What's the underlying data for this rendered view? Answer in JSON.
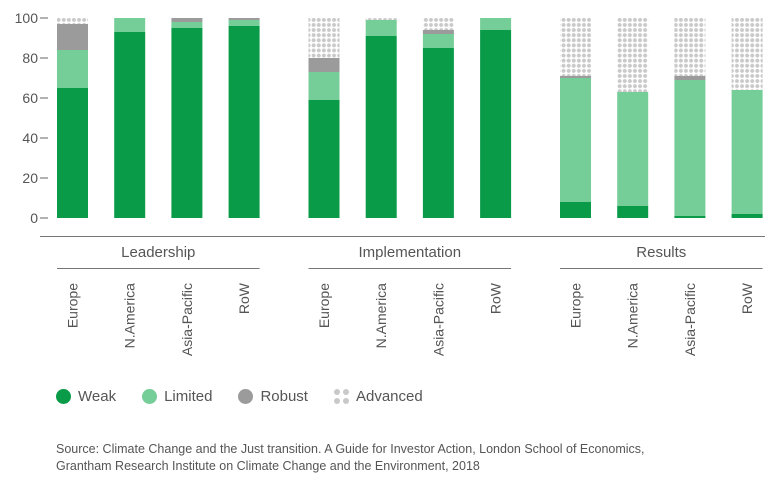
{
  "chart_data": {
    "type": "bar",
    "stacked": true,
    "ylim": [
      0,
      100
    ],
    "yticks": [
      0,
      20,
      40,
      60,
      80,
      100
    ],
    "groups": [
      {
        "label": "Leadership",
        "categories": [
          "Europe",
          "N.America",
          "Asia-Pacific",
          "RoW"
        ]
      },
      {
        "label": "Implementation",
        "categories": [
          "Europe",
          "N.America",
          "Asia-Pacific",
          "RoW"
        ]
      },
      {
        "label": "Results",
        "categories": [
          "Europe",
          "N.America",
          "Asia-Pacific",
          "RoW"
        ]
      }
    ],
    "series": [
      {
        "name": "Weak",
        "color": "#0a9b48",
        "values": [
          [
            65,
            93,
            95,
            96
          ],
          [
            59,
            91,
            85,
            94
          ],
          [
            8,
            6,
            1,
            2
          ]
        ]
      },
      {
        "name": "Limited",
        "color": "#75cd98",
        "values": [
          [
            19,
            7,
            3,
            3
          ],
          [
            14,
            8,
            7,
            6
          ],
          [
            62,
            57,
            68,
            62
          ]
        ]
      },
      {
        "name": "Robust",
        "color": "#9b9b9b",
        "values": [
          [
            13,
            0,
            2,
            1
          ],
          [
            7,
            0,
            2,
            0
          ],
          [
            1,
            0,
            2,
            0
          ]
        ]
      },
      {
        "name": "Advanced",
        "color": "#c9c9c9",
        "pattern": "dots",
        "values": [
          [
            3,
            0,
            0,
            0
          ],
          [
            20,
            1,
            6,
            0
          ],
          [
            29,
            37,
            29,
            36
          ]
        ]
      }
    ],
    "legend_position": "bottom-left"
  },
  "source": {
    "line1": "Source: Climate Change and the Just transition. A Guide for Investor Action, London School of Economics,",
    "line2": "Grantham Research Institute on Climate Change and the Environment, 2018"
  }
}
